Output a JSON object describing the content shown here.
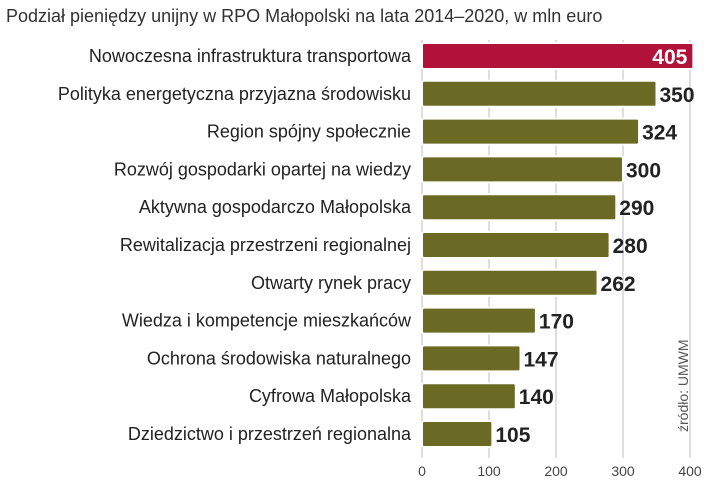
{
  "chart_data": {
    "type": "bar",
    "orientation": "horizontal",
    "title": "Podział pieniędzy unijny w RPO Małopolski na lata 2014–2020, w mln euro",
    "source": "źródło: UMWM",
    "categories": [
      "Nowoczesna infrastruktura transportowa",
      "Polityka energetyczna przyjazna środowisku",
      "Region spójny społecznie",
      "Rozwój gospodarki opartej na wiedzy",
      "Aktywna gospodarczo Małopolska",
      "Rewitalizacja przestrzeni regionalnej",
      "Otwarty rynek pracy",
      "Wiedza i kompetencje mieszkańców",
      "Ochrona środowiska naturalnego",
      "Cyfrowa Małopolska",
      "Dziedzictwo i przestrzeń regionalna"
    ],
    "values": [
      405,
      350,
      324,
      300,
      290,
      280,
      262,
      170,
      147,
      140,
      105
    ],
    "highlight_index": 0,
    "xlim": [
      0,
      400
    ],
    "xticks": [
      0,
      100,
      200,
      300,
      400
    ],
    "grid": true,
    "colors": {
      "bar": "#6b6a24",
      "highlight": "#b0123a",
      "label": "#222222",
      "grid": "#bdbdbd",
      "highlight_label": "#ffffff"
    }
  }
}
